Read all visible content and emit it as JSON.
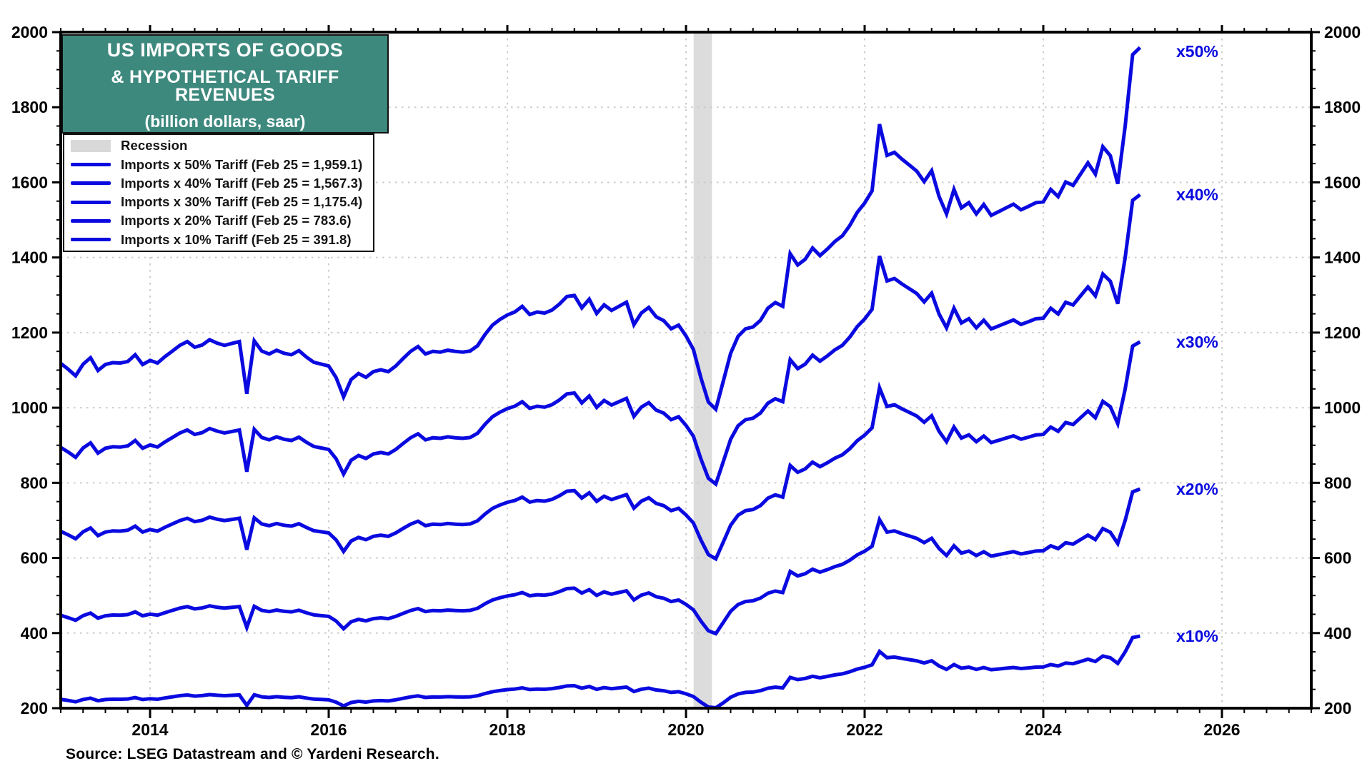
{
  "title_box": {
    "line1": "US IMPORTS OF GOODS",
    "line2": "& HYPOTHETICAL TARIFF REVENUES",
    "line3": "(billion dollars, saar)"
  },
  "source_note": "Source: LSEG Datastream and © Yardeni Research.",
  "colors": {
    "line_blue": "#0a0ae0",
    "end_label_blue": "#0a0ae0",
    "title_bg_teal": "#3e897e",
    "title_text": "#ffffff",
    "recession_band": "#dcdcdc",
    "legend_recession_swatch": "#d9d9d9",
    "gridline": "#cbcbcb",
    "axis": "#000000"
  },
  "legend": {
    "recession_label": "Recession",
    "items": [
      {
        "label": "Imports x 50% Tariff (Feb 25 = 1,959.1)"
      },
      {
        "label": "Imports x 40% Tariff (Feb 25 = 1,567.3)"
      },
      {
        "label": "Imports x 30% Tariff (Feb 25 = 1,175.4)"
      },
      {
        "label": "Imports x 20% Tariff (Feb 25 = 783.6)"
      },
      {
        "label": "Imports x 10% Tariff (Feb 25 = 391.8)"
      }
    ]
  },
  "chart_data": {
    "type": "line",
    "title": "US IMPORTS OF GOODS & HYPOTHETICAL TARIFF REVENUES",
    "subtitle": "(billion dollars, saar)",
    "xlabel": "",
    "ylabel": "billion dollars, saar",
    "grid": true,
    "legend_position": "top-left",
    "x_range": [
      2013.0,
      2027.0
    ],
    "y_range": [
      200,
      2000
    ],
    "x_ticks": [
      2014,
      2016,
      2018,
      2020,
      2022,
      2024,
      2026
    ],
    "x_tick_labels": [
      "2014",
      "2016",
      "2018",
      "2020",
      "2022",
      "2024",
      "2026"
    ],
    "y_ticks": [
      200,
      400,
      600,
      800,
      1000,
      1200,
      1400,
      1600,
      1800,
      2000
    ],
    "y_tick_labels": [
      "200",
      "400",
      "600",
      "800",
      "1000",
      "1200",
      "1400",
      "1600",
      "1800",
      "2000"
    ],
    "frequency": "monthly",
    "start_year": 2013,
    "start_month": 1,
    "end_label_note": "imports_monthly are US goods imports (billion dollars, saar); each plotted series = imports x tariff rate",
    "imports_monthly": [
      2236,
      2205,
      2170,
      2232,
      2266,
      2198,
      2230,
      2240,
      2238,
      2246,
      2282,
      2230,
      2252,
      2238,
      2272,
      2302,
      2332,
      2352,
      2322,
      2334,
      2362,
      2344,
      2332,
      2342,
      2352,
      2074,
      2356,
      2302,
      2286,
      2306,
      2290,
      2282,
      2304,
      2270,
      2242,
      2232,
      2222,
      2160,
      2058,
      2150,
      2182,
      2162,
      2192,
      2202,
      2192,
      2222,
      2262,
      2300,
      2326,
      2286,
      2300,
      2296,
      2306,
      2300,
      2296,
      2302,
      2330,
      2390,
      2440,
      2470,
      2494,
      2510,
      2540,
      2496,
      2510,
      2504,
      2520,
      2552,
      2592,
      2598,
      2532,
      2578,
      2502,
      2548,
      2518,
      2540,
      2562,
      2442,
      2504,
      2534,
      2484,
      2464,
      2420,
      2440,
      2382,
      2310,
      2160,
      2030,
      1992,
      2140,
      2290,
      2380,
      2420,
      2430,
      2465,
      2530,
      2560,
      2540,
      2820,
      2760,
      2790,
      2850,
      2810,
      2845,
      2885,
      2915,
      2970,
      3040,
      3090,
      3155,
      3510,
      3344,
      3360,
      3324,
      3292,
      3260,
      3204,
      3262,
      3124,
      3032,
      3162,
      3064,
      3092,
      3032,
      3082,
      3024,
      3044,
      3064,
      3084,
      3054,
      3072,
      3092,
      3096,
      3162,
      3124,
      3202,
      3184,
      3244,
      3304,
      3244,
      3390,
      3342,
      3192,
      3500,
      3880,
      3918
    ],
    "series": [
      {
        "name": "Imports x 50% Tariff",
        "tariff_multiplier": 0.5,
        "feb_2025_value": 1959.1,
        "end_label": "x50%"
      },
      {
        "name": "Imports x 40% Tariff",
        "tariff_multiplier": 0.4,
        "feb_2025_value": 1567.3,
        "end_label": "x40%"
      },
      {
        "name": "Imports x 30% Tariff",
        "tariff_multiplier": 0.3,
        "feb_2025_value": 1175.4,
        "end_label": "x30%"
      },
      {
        "name": "Imports x 20% Tariff",
        "tariff_multiplier": 0.2,
        "feb_2025_value": 783.6,
        "end_label": "x20%"
      },
      {
        "name": "Imports x 10% Tariff",
        "tariff_multiplier": 0.1,
        "feb_2025_value": 391.8,
        "end_label": "x10%"
      }
    ],
    "recession_bands": [
      {
        "start": 2020.085,
        "end": 2020.29,
        "label": "Recession"
      }
    ]
  }
}
